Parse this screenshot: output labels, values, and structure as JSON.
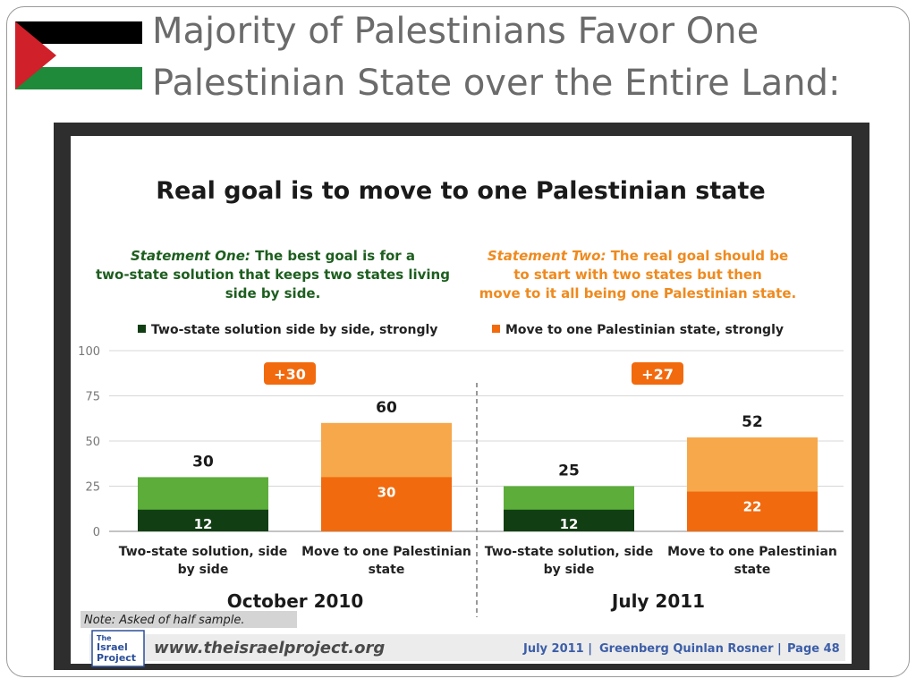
{
  "slide": {
    "title": "Majority of Palestinians Favor One Palestinian State over the Entire Land:"
  },
  "flag": {
    "name": "palestinian-flag",
    "colors": {
      "black": "#000000",
      "white": "#ffffff",
      "green": "#1e8a3a",
      "red": "#d0202a"
    }
  },
  "colors": {
    "dark_green": "#123e14",
    "light_green": "#5cad3a",
    "dark_orange": "#f26a0e",
    "light_orange": "#f7a84a",
    "callout_orange": "#f26a0e",
    "statement_one_green": "#1d5e1f",
    "statement_two_orange": "#ef8a1e"
  },
  "chart_data": {
    "type": "bar",
    "title": "Real goal is to move to one Palestinian state",
    "statement_one": {
      "lead": "Statement One:",
      "text": "The best goal is for a two-state solution that keeps two states living side by side."
    },
    "statement_two": {
      "lead": "Statement Two:",
      "text": "The real goal should be to start with two states but then move to it all being one Palestinian state."
    },
    "legend": [
      "Two-state solution side by side, strongly",
      "Move to one Palestinian state, strongly"
    ],
    "legend_position": "top",
    "ylim": [
      0,
      100
    ],
    "yticks": [
      0,
      25,
      50,
      75,
      100
    ],
    "grid": true,
    "groups": [
      {
        "label": "October 2010",
        "callout": "+30",
        "bars": [
          {
            "category": "Two-state solution, side by side",
            "total": 30,
            "strongly": 12
          },
          {
            "category": "Move to one Palestinian state",
            "total": 60,
            "strongly": 30
          }
        ]
      },
      {
        "label": "July 2011",
        "callout": "+27",
        "bars": [
          {
            "category": "Two-state solution, side by side",
            "total": 25,
            "strongly": 12
          },
          {
            "category": "Move to one Palestinian state",
            "total": 52,
            "strongly": 22
          }
        ]
      }
    ],
    "note": "Note: Asked of half sample."
  },
  "footer": {
    "logo_text": [
      "The",
      "Israel",
      "Project"
    ],
    "url": "www.theisraelproject.org",
    "date": "July 2011",
    "source": "Greenberg Quinlan Rosner",
    "page": "Page 48"
  }
}
